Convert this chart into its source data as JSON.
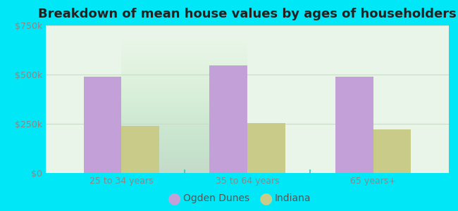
{
  "title": "Breakdown of mean house values by ages of householders",
  "categories": [
    "25 to 34 years",
    "35 to 64 years",
    "65 years+"
  ],
  "series": [
    {
      "name": "Ogden Dunes",
      "values": [
        490000,
        545000,
        490000
      ],
      "color": "#c4a0d8"
    },
    {
      "name": "Indiana",
      "values": [
        240000,
        255000,
        220000
      ],
      "color": "#c8cc88"
    }
  ],
  "ylim": [
    0,
    750000
  ],
  "yticks": [
    0,
    250000,
    500000,
    750000
  ],
  "ytick_labels": [
    "$0",
    "$250k",
    "$500k",
    "$750k"
  ],
  "bar_width": 0.3,
  "outer_bg": "#00e8f8",
  "plot_bg": "#e8f5e9",
  "title_fontsize": 13,
  "tick_fontsize": 9,
  "legend_fontsize": 10,
  "tick_color": "#888888",
  "grid_color": "#c8dcc8"
}
